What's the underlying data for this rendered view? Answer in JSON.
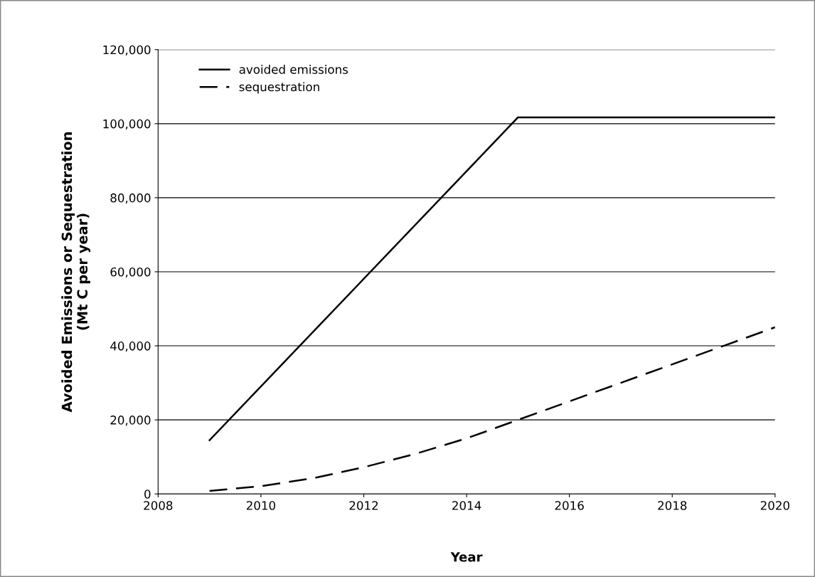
{
  "chart_data": {
    "type": "line",
    "xlabel": "Year",
    "ylabel": "Avoided Emissions or Sequestration\n(Mt C per year)",
    "xlim": [
      2008,
      2020
    ],
    "xticks": [
      2008,
      2010,
      2012,
      2014,
      2016,
      2018,
      2020
    ],
    "ylim": [
      0,
      120000
    ],
    "yticks": [
      {
        "value": 0,
        "label": "0"
      },
      {
        "value": 20000,
        "label": "20,000"
      },
      {
        "value": 40000,
        "label": "40,000"
      },
      {
        "value": 60000,
        "label": "60,000"
      },
      {
        "value": 80000,
        "label": "80,000"
      },
      {
        "value": 100000,
        "label": "100,000"
      },
      {
        "value": 120000,
        "label": "120,000"
      }
    ],
    "grid": "y",
    "legend": "top left",
    "marker": "none",
    "series": [
      {
        "name": "avoided emissions",
        "color": "#000000",
        "line_style": "solid",
        "x": [
          2009,
          2015,
          2020
        ],
        "values": [
          14500,
          101700,
          101700
        ]
      },
      {
        "name": "sequestration",
        "color": "#000000",
        "line_style": "dashed",
        "x": [
          2009,
          2010,
          2011,
          2012,
          2013,
          2014,
          2015,
          2016,
          2017,
          2018,
          2019,
          2020
        ],
        "values": [
          800,
          2100,
          4200,
          7200,
          10800,
          15000,
          20000,
          25000,
          30000,
          35000,
          40000,
          45000
        ]
      }
    ]
  }
}
